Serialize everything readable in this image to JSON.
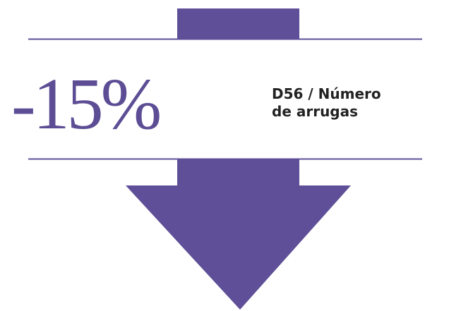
{
  "stat": "-15%",
  "label": {
    "lines": [
      "D56 / Número",
      "de arrugas"
    ]
  }
}
